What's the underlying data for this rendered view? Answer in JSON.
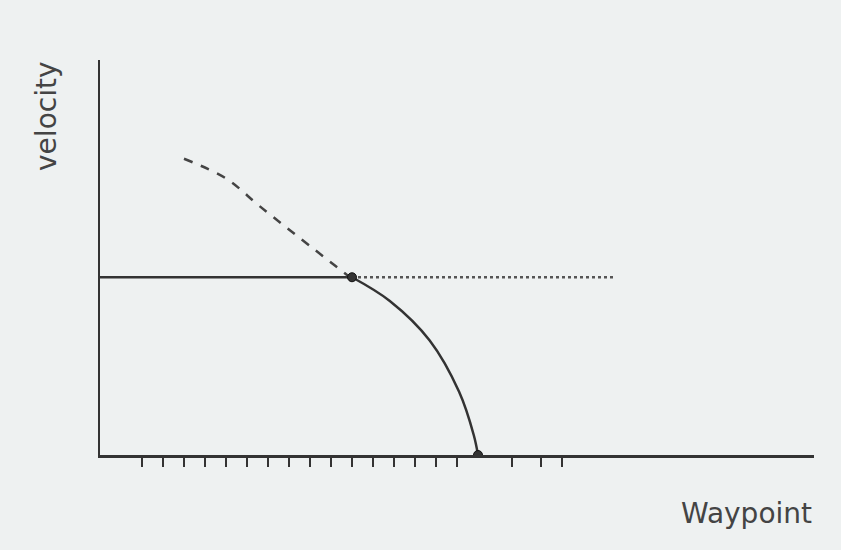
{
  "chart_data": {
    "type": "line",
    "xlabel": "Waypoint",
    "ylabel": "velocity",
    "xlim": [
      0,
      34
    ],
    "ylim": [
      0,
      10
    ],
    "xticks": [
      2,
      3,
      4,
      5,
      6,
      7,
      8,
      9,
      10,
      11,
      12,
      13,
      14,
      15,
      16,
      17,
      19.6,
      21,
      22
    ],
    "yticks": [],
    "tick_labels": false,
    "grid": false,
    "color": "#333333",
    "series": [
      {
        "x": [
          0,
          12
        ],
        "values": [
          4.5,
          4.5
        ],
        "line_style": "solid",
        "color": "#333333"
      },
      {
        "x": [
          12,
          13.8,
          15.7,
          17.1,
          17.8,
          18
        ],
        "values": [
          4.5,
          3.9,
          2.9,
          1.6,
          0.5,
          0
        ],
        "line_style": "solid",
        "color": "#333333"
      },
      {
        "x": [
          4,
          6,
          7.6,
          9.5,
          11.9
        ],
        "values": [
          7.5,
          7.0,
          6.3,
          5.5,
          4.5
        ],
        "line_style": "dash",
        "color": "#444444"
      },
      {
        "x": [
          12,
          24.5
        ],
        "values": [
          4.5,
          4.5
        ],
        "line_style": "dot",
        "color": "#555555"
      },
      {
        "x": [
          12,
          18
        ],
        "values": [
          4.5,
          0
        ],
        "type": "scatter",
        "marker": "circle",
        "color": "#333333"
      }
    ]
  }
}
